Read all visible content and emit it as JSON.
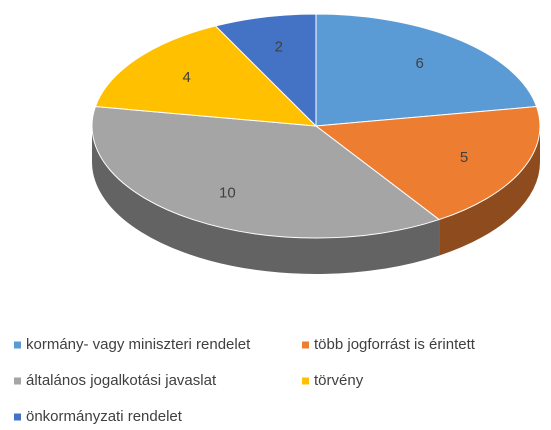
{
  "chart_data": {
    "type": "pie",
    "categories": [
      "kormány- vagy miniszteri rendelet",
      "több jogforrást is érintett",
      "általános jogalkotási javaslat",
      "törvény",
      "önkormányzati rendelet"
    ],
    "values": [
      6,
      5,
      10,
      4,
      2
    ],
    "colors": [
      "#5b9bd5",
      "#ed7d31",
      "#a5a5a5",
      "#ffc000",
      "#4472c4"
    ]
  }
}
